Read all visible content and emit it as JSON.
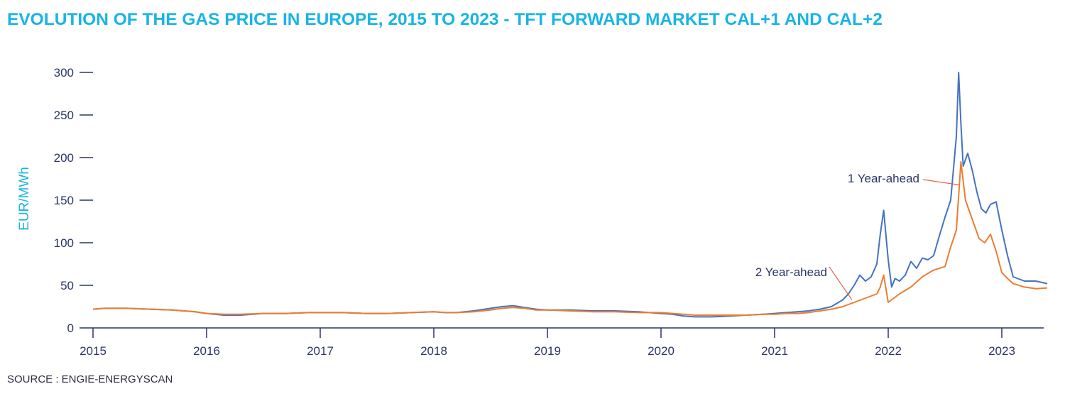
{
  "chart_data": {
    "type": "line",
    "title": "EVOLUTION OF THE GAS PRICE IN EUROPE, 2015 TO 2023 - TFT FORWARD MARKET CAL+1 AND CAL+2",
    "xlabel": "",
    "ylabel": "EUR/MWh",
    "source": "SOURCE : ENGIE-ENERGYSCAN",
    "xlim": [
      2015.0,
      2023.4
    ],
    "ylim": [
      0,
      300
    ],
    "x_ticks": [
      "2015",
      "2016",
      "2017",
      "2018",
      "2019",
      "2020",
      "2021",
      "2022",
      "2023"
    ],
    "y_ticks": [
      0,
      50,
      100,
      150,
      200,
      250,
      300
    ],
    "grid": false,
    "annotations": [
      {
        "text": "1 Year-ahead",
        "series": "1 Year-ahead"
      },
      {
        "text": "2 Year-ahead",
        "series": "2 Year-ahead"
      }
    ],
    "series": [
      {
        "name": "1 Year-ahead",
        "color": "#4472c4",
        "x": [
          2015.0,
          2015.1,
          2015.3,
          2015.5,
          2015.7,
          2015.9,
          2016.0,
          2016.15,
          2016.3,
          2016.5,
          2016.7,
          2016.9,
          2017.0,
          2017.2,
          2017.4,
          2017.6,
          2017.8,
          2018.0,
          2018.1,
          2018.2,
          2018.35,
          2018.5,
          2018.6,
          2018.7,
          2018.8,
          2018.9,
          2019.0,
          2019.2,
          2019.4,
          2019.6,
          2019.8,
          2020.0,
          2020.1,
          2020.2,
          2020.3,
          2020.45,
          2020.6,
          2020.75,
          2020.9,
          2021.0,
          2021.1,
          2021.2,
          2021.3,
          2021.4,
          2021.5,
          2021.6,
          2021.65,
          2021.7,
          2021.75,
          2021.8,
          2021.85,
          2021.9,
          2021.93,
          2021.96,
          2022.0,
          2022.03,
          2022.06,
          2022.1,
          2022.15,
          2022.2,
          2022.25,
          2022.3,
          2022.35,
          2022.4,
          2022.45,
          2022.5,
          2022.55,
          2022.6,
          2022.62,
          2022.64,
          2022.66,
          2022.7,
          2022.74,
          2022.78,
          2022.82,
          2022.86,
          2022.9,
          2022.95,
          2023.0,
          2023.05,
          2023.1,
          2023.2,
          2023.3,
          2023.4
        ],
        "values": [
          22,
          23,
          23,
          22,
          21,
          19,
          17,
          15,
          15,
          17,
          17,
          18,
          18,
          18,
          17,
          17,
          18,
          19,
          18,
          18,
          20,
          23,
          25,
          26,
          24,
          22,
          21,
          21,
          20,
          20,
          19,
          17,
          16,
          14,
          13,
          13,
          14,
          15,
          16,
          17,
          18,
          19,
          20,
          22,
          25,
          33,
          40,
          50,
          62,
          55,
          60,
          75,
          110,
          138,
          80,
          48,
          58,
          55,
          62,
          78,
          70,
          82,
          80,
          85,
          108,
          130,
          150,
          225,
          300,
          240,
          190,
          205,
          185,
          160,
          140,
          135,
          145,
          148,
          115,
          85,
          60,
          55,
          55,
          52
        ]
      },
      {
        "name": "2 Year-ahead",
        "color": "#ed7d31",
        "x": [
          2015.0,
          2015.1,
          2015.3,
          2015.5,
          2015.7,
          2015.9,
          2016.0,
          2016.15,
          2016.3,
          2016.5,
          2016.7,
          2016.9,
          2017.0,
          2017.2,
          2017.4,
          2017.6,
          2017.8,
          2018.0,
          2018.1,
          2018.2,
          2018.35,
          2018.5,
          2018.6,
          2018.7,
          2018.8,
          2018.9,
          2019.0,
          2019.2,
          2019.4,
          2019.6,
          2019.8,
          2020.0,
          2020.1,
          2020.2,
          2020.3,
          2020.45,
          2020.6,
          2020.75,
          2020.9,
          2021.0,
          2021.1,
          2021.2,
          2021.3,
          2021.4,
          2021.5,
          2021.6,
          2021.7,
          2021.8,
          2021.9,
          2021.93,
          2021.96,
          2022.0,
          2022.05,
          2022.1,
          2022.2,
          2022.3,
          2022.4,
          2022.5,
          2022.55,
          2022.6,
          2022.64,
          2022.68,
          2022.72,
          2022.76,
          2022.8,
          2022.85,
          2022.9,
          2022.95,
          2023.0,
          2023.05,
          2023.1,
          2023.2,
          2023.3,
          2023.4
        ],
        "values": [
          22,
          23,
          23,
          22,
          21,
          19,
          17,
          16,
          16,
          17,
          17,
          18,
          18,
          18,
          17,
          17,
          18,
          19,
          18,
          18,
          19,
          21,
          23,
          24,
          23,
          21,
          21,
          20,
          19,
          19,
          18,
          18,
          17,
          16,
          15,
          15,
          15,
          15,
          16,
          16,
          17,
          17,
          18,
          20,
          22,
          25,
          30,
          35,
          40,
          48,
          62,
          30,
          35,
          40,
          48,
          60,
          68,
          72,
          95,
          115,
          195,
          150,
          135,
          120,
          105,
          100,
          110,
          90,
          65,
          58,
          52,
          48,
          46,
          47
        ]
      }
    ]
  }
}
